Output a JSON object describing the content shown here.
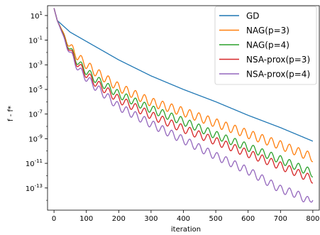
{
  "chart_data": {
    "type": "line",
    "title": "",
    "xlabel": "iteration",
    "ylabel": "f - f*",
    "xlim": [
      -20,
      820
    ],
    "ylim_log10": [
      -14.8,
      1.8
    ],
    "yscale": "log",
    "x_ticks": [
      0,
      100,
      200,
      300,
      400,
      500,
      600,
      700,
      800
    ],
    "y_ticks": [
      {
        "exp": 1,
        "base": "10",
        "power": "1"
      },
      {
        "exp": -1,
        "base": "10",
        "power": "-1"
      },
      {
        "exp": -3,
        "base": "10",
        "power": "-3"
      },
      {
        "exp": -5,
        "base": "10",
        "power": "-5"
      },
      {
        "exp": -7,
        "base": "10",
        "power": "-7"
      },
      {
        "exp": -9,
        "base": "10",
        "power": "-9"
      },
      {
        "exp": -11,
        "base": "10",
        "power": "-11"
      },
      {
        "exp": -13,
        "base": "10",
        "power": "-13"
      }
    ],
    "grid": false,
    "legend_position": "top-right",
    "series": [
      {
        "name": "GD",
        "color": "#1f77b4",
        "x": [
          0,
          10,
          50,
          100,
          200,
          300,
          400,
          500,
          600,
          700,
          800
        ],
        "log10y": [
          1.6,
          0.6,
          -0.35,
          -1.1,
          -2.6,
          -3.9,
          -5.0,
          -6.0,
          -7.1,
          -8.1,
          -9.2
        ]
      },
      {
        "name": "NAG(p=3)",
        "color": "#ff7f0e",
        "x": [
          0,
          10,
          40,
          80,
          120,
          200,
          300,
          400,
          500,
          600,
          700,
          800
        ],
        "log10y": [
          1.6,
          0.6,
          -1.0,
          -2.3,
          -3.2,
          -4.6,
          -5.8,
          -6.6,
          -7.5,
          -8.4,
          -9.3,
          -10.3
        ],
        "osc_amp": 0.45,
        "osc_period": 28
      },
      {
        "name": "NAG(p=4)",
        "color": "#2ca02c",
        "x": [
          0,
          10,
          40,
          80,
          120,
          200,
          300,
          400,
          500,
          600,
          700,
          800
        ],
        "log10y": [
          1.6,
          0.6,
          -1.2,
          -2.8,
          -3.8,
          -5.2,
          -6.4,
          -7.4,
          -8.5,
          -9.5,
          -10.5,
          -11.6
        ],
        "osc_amp": 0.4,
        "osc_period": 28
      },
      {
        "name": "NSA-prox(p=3)",
        "color": "#d62728",
        "x": [
          0,
          10,
          40,
          80,
          120,
          200,
          300,
          400,
          500,
          600,
          700,
          800
        ],
        "log10y": [
          1.6,
          0.6,
          -1.3,
          -3.0,
          -4.1,
          -5.6,
          -6.9,
          -8.0,
          -9.0,
          -10.0,
          -11.0,
          -12.1
        ],
        "osc_amp": 0.4,
        "osc_period": 28
      },
      {
        "name": "NSA-prox(p=4)",
        "color": "#9467bd",
        "x": [
          0,
          10,
          40,
          80,
          120,
          200,
          300,
          400,
          500,
          600,
          700,
          750,
          790,
          800
        ],
        "log10y": [
          1.6,
          0.6,
          -1.4,
          -3.3,
          -4.4,
          -6.2,
          -7.6,
          -8.9,
          -10.2,
          -11.4,
          -12.9,
          -13.3,
          -13.9,
          -13.5
        ],
        "osc_amp": 0.4,
        "osc_period": 28
      }
    ]
  }
}
